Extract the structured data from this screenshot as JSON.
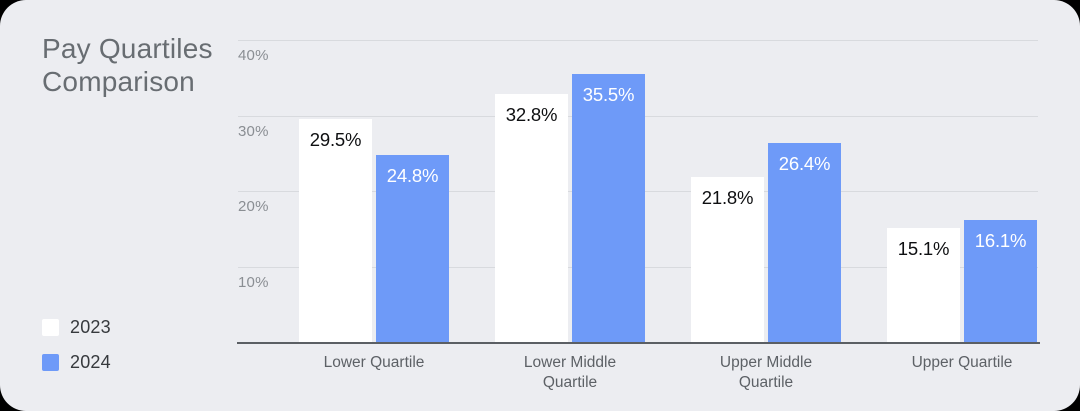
{
  "title": "Pay Quartiles Comparison",
  "legend": [
    {
      "label": "2023",
      "color": "#FFFFFF"
    },
    {
      "label": "2024",
      "color": "#6E9AF8"
    }
  ],
  "colors": {
    "card_background": "#ECEDF1",
    "page_background": "#000000",
    "bar_2023": "#FFFFFF",
    "bar_2024": "#6E9AF8",
    "gridline": "#D8DADE",
    "axis_line": "#5B5F64",
    "title_text": "#686D72",
    "y_tick_text": "#8A8E93",
    "x_label_text": "#5D6166",
    "legend_text": "#36393D",
    "value_label_on_white": "#0E0F11",
    "value_label_on_blue": "#FFFFFF"
  },
  "chart_data": {
    "type": "bar",
    "title": "Pay Quartiles Comparison",
    "categories": [
      "Lower Quartile",
      "Lower Middle Quartile",
      "Upper Middle Quartile",
      "Upper Quartile"
    ],
    "series": [
      {
        "name": "2023",
        "color": "#FFFFFF",
        "label_color": "#0E0F11",
        "values": [
          29.5,
          32.8,
          21.8,
          15.1
        ]
      },
      {
        "name": "2024",
        "color": "#6E9AF8",
        "label_color": "#FFFFFF",
        "values": [
          24.8,
          35.5,
          26.4,
          16.1
        ]
      }
    ],
    "value_labels": [
      [
        "29.5%",
        "32.8%",
        "21.8%",
        "15.1%"
      ],
      [
        "24.8%",
        "35.5%",
        "26.4%",
        "16.1%"
      ]
    ],
    "xlabel": "",
    "ylabel": "",
    "ylim": [
      0,
      40
    ],
    "yticks": [
      10,
      20,
      30,
      40
    ],
    "ytick_labels": [
      "10%",
      "20%",
      "30%",
      "40%"
    ],
    "grid": "horizontal",
    "legend_position": "bottom-left"
  }
}
